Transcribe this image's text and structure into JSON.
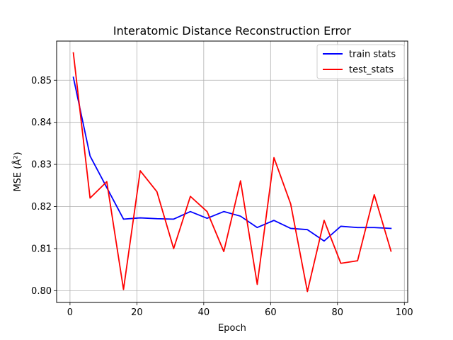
{
  "chart_data": {
    "type": "line",
    "title": "Interatomic Distance Reconstruction Error",
    "xlabel": "Epoch",
    "ylabel": "MSE (Å²)",
    "xlim": [
      -4,
      101
    ],
    "ylim": [
      0.7972,
      0.8593
    ],
    "xticks": [
      0,
      20,
      40,
      60,
      80,
      100
    ],
    "yticks": [
      0.8,
      0.81,
      0.82,
      0.83,
      0.84,
      0.85
    ],
    "grid": true,
    "legend_position": "top-right",
    "x": [
      1,
      6,
      11,
      16,
      21,
      26,
      31,
      36,
      41,
      46,
      51,
      56,
      61,
      66,
      71,
      76,
      81,
      86,
      91,
      96
    ],
    "series": [
      {
        "name": "train stats",
        "color": "#0000ff",
        "values": [
          0.8507,
          0.832,
          0.8245,
          0.817,
          0.8173,
          0.8171,
          0.817,
          0.8188,
          0.8172,
          0.8188,
          0.8177,
          0.815,
          0.8167,
          0.8148,
          0.8145,
          0.8118,
          0.8153,
          0.815,
          0.815,
          0.8148
        ]
      },
      {
        "name": "test_stats",
        "color": "#ff0000",
        "values": [
          0.8565,
          0.822,
          0.8259,
          0.8003,
          0.8285,
          0.8235,
          0.81,
          0.8224,
          0.8188,
          0.8093,
          0.8261,
          0.8015,
          0.8316,
          0.8206,
          0.7998,
          0.8167,
          0.8065,
          0.8071,
          0.8228,
          0.8094
        ]
      }
    ]
  }
}
